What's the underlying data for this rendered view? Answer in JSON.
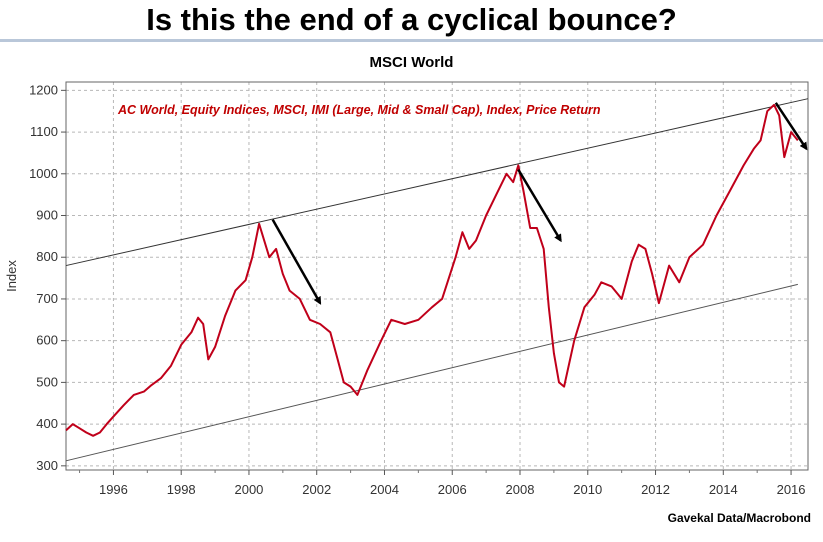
{
  "page": {
    "headline": "Is this the end of a cyclical bounce?",
    "source": "Gavekal Data/Macrobond"
  },
  "chart_data": {
    "type": "line",
    "title": "MSCI World",
    "xlabel": "",
    "ylabel": "Index",
    "annotation": "AC World, Equity Indices, MSCI, IMI (Large, Mid & Small Cap), Index, Price Return",
    "xlim": [
      1994.6,
      2016.5
    ],
    "ylim": [
      290,
      1220
    ],
    "xticks": [
      1996,
      1998,
      2000,
      2002,
      2004,
      2006,
      2008,
      2010,
      2012,
      2014,
      2016
    ],
    "xtick_labels": [
      "1996",
      "1998",
      "2000",
      "2002",
      "2004",
      "2006",
      "2008",
      "2010",
      "2012",
      "2014",
      "2016"
    ],
    "yticks": [
      300,
      400,
      500,
      600,
      700,
      800,
      900,
      1000,
      1100,
      1200
    ],
    "ytick_labels": [
      "300",
      "400",
      "500",
      "600",
      "700",
      "800",
      "900",
      "1000",
      "1100",
      "1200"
    ],
    "grid": true,
    "line_color": "#c0001a",
    "series": [
      {
        "name": "",
        "x": [
          1994.6,
          1994.8,
          1995.0,
          1995.2,
          1995.4,
          1995.6,
          1995.8,
          1996.0,
          1996.3,
          1996.6,
          1996.9,
          1997.1,
          1997.4,
          1997.7,
          1998.0,
          1998.3,
          1998.5,
          1998.65,
          1998.8,
          1999.0,
          1999.3,
          1999.6,
          1999.9,
          2000.1,
          2000.3,
          2000.6,
          2000.8,
          2001.0,
          2001.2,
          2001.5,
          2001.8,
          2002.1,
          2002.4,
          2002.6,
          2002.8,
          2003.0,
          2003.2,
          2003.5,
          2003.9,
          2004.2,
          2004.6,
          2005.0,
          2005.4,
          2005.7,
          2006.1,
          2006.3,
          2006.5,
          2006.7,
          2007.0,
          2007.3,
          2007.6,
          2007.8,
          2007.95,
          2008.1,
          2008.3,
          2008.5,
          2008.7,
          2008.85,
          2009.0,
          2009.15,
          2009.3,
          2009.6,
          2009.9,
          2010.2,
          2010.4,
          2010.7,
          2011.0,
          2011.3,
          2011.5,
          2011.7,
          2011.9,
          2012.1,
          2012.4,
          2012.7,
          2013.0,
          2013.4,
          2013.8,
          2014.2,
          2014.6,
          2014.9,
          2015.1,
          2015.3,
          2015.5,
          2015.65,
          2015.8,
          2016.0,
          2016.2
        ],
        "values": [
          385,
          400,
          390,
          380,
          372,
          380,
          400,
          418,
          445,
          470,
          478,
          492,
          510,
          540,
          590,
          620,
          655,
          640,
          555,
          585,
          660,
          720,
          745,
          800,
          880,
          800,
          820,
          760,
          720,
          700,
          650,
          640,
          620,
          560,
          500,
          490,
          470,
          530,
          600,
          650,
          640,
          650,
          680,
          700,
          800,
          860,
          820,
          840,
          900,
          950,
          1000,
          980,
          1020,
          960,
          870,
          870,
          820,
          680,
          570,
          500,
          490,
          600,
          680,
          710,
          740,
          730,
          700,
          790,
          830,
          820,
          760,
          690,
          780,
          740,
          800,
          830,
          900,
          960,
          1020,
          1060,
          1080,
          1150,
          1165,
          1140,
          1040,
          1100,
          1080
        ]
      }
    ],
    "trendlines": [
      {
        "name": "",
        "x": [
          1994.6,
          2016.5
        ],
        "values": [
          780,
          1180
        ]
      },
      {
        "name": "",
        "x": [
          1994.6,
          2016.2
        ],
        "values": [
          312,
          735
        ]
      }
    ],
    "arrows": [
      {
        "x": [
          2000.7,
          2002.1
        ],
        "values": [
          890,
          690
        ]
      },
      {
        "x": [
          2007.95,
          2009.2
        ],
        "values": [
          1010,
          840
        ]
      },
      {
        "x": [
          2015.55,
          2016.45
        ],
        "values": [
          1170,
          1060
        ]
      }
    ]
  }
}
